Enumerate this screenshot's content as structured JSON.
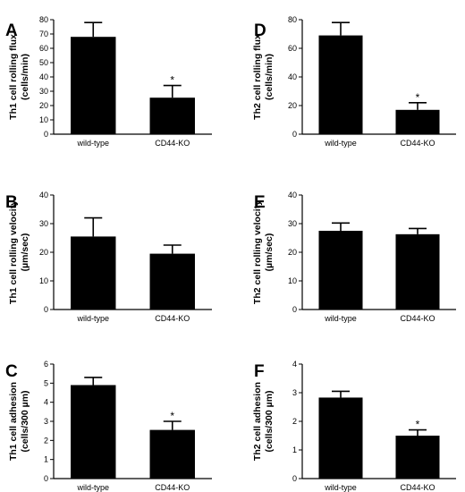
{
  "chart_data": [
    {
      "panel": "A",
      "type": "bar",
      "categories": [
        "wild-type",
        "CD44-KO"
      ],
      "values": [
        68,
        25.5
      ],
      "errors": [
        10,
        8.5
      ],
      "significance": [
        "",
        "*"
      ],
      "ylabel_lines": [
        "Th1 cell rolling flux",
        "(cells/min)"
      ],
      "ylim": [
        0,
        80
      ],
      "yticks": [
        0,
        10,
        20,
        30,
        40,
        50,
        60,
        70,
        80
      ],
      "bar_color": "#000000"
    },
    {
      "panel": "B",
      "type": "bar",
      "categories": [
        "wild-type",
        "CD44-KO"
      ],
      "values": [
        25.5,
        19.5
      ],
      "errors": [
        6.5,
        3
      ],
      "significance": [
        "",
        ""
      ],
      "ylabel_lines": [
        "Th1 cell rolling velocity",
        "(µm/sec)"
      ],
      "ylim": [
        0,
        40
      ],
      "yticks": [
        0,
        10,
        20,
        30,
        40
      ],
      "bar_color": "#000000"
    },
    {
      "panel": "C",
      "type": "bar",
      "categories": [
        "wild-type",
        "CD44-KO"
      ],
      "values": [
        4.9,
        2.55
      ],
      "errors": [
        0.4,
        0.45
      ],
      "significance": [
        "",
        "*"
      ],
      "ylabel_lines": [
        "Th1 cell adhesion",
        "(cells/300  µm)"
      ],
      "ylim": [
        0,
        6
      ],
      "yticks": [
        0,
        1,
        2,
        3,
        4,
        5,
        6
      ],
      "bar_color": "#000000"
    },
    {
      "panel": "D",
      "type": "bar",
      "categories": [
        "wild-type",
        "CD44-KO"
      ],
      "values": [
        69,
        17
      ],
      "errors": [
        9,
        5
      ],
      "significance": [
        "",
        "*"
      ],
      "ylabel_lines": [
        "Th2 cell rolling flux",
        "(cells/min)"
      ],
      "ylim": [
        0,
        80
      ],
      "yticks": [
        0,
        20,
        40,
        60,
        80
      ],
      "bar_color": "#000000"
    },
    {
      "panel": "E",
      "type": "bar",
      "categories": [
        "wild-type",
        "CD44-KO"
      ],
      "values": [
        27.5,
        26.3
      ],
      "errors": [
        2.7,
        2
      ],
      "significance": [
        "",
        ""
      ],
      "ylabel_lines": [
        "Th2 cell rolling velocity",
        "(µm/sec)"
      ],
      "ylim": [
        0,
        40
      ],
      "yticks": [
        0,
        10,
        20,
        30,
        40
      ],
      "bar_color": "#000000"
    },
    {
      "panel": "F",
      "type": "bar",
      "categories": [
        "wild-type",
        "CD44-KO"
      ],
      "values": [
        2.83,
        1.5
      ],
      "errors": [
        0.22,
        0.2
      ],
      "significance": [
        "",
        "*"
      ],
      "ylabel_lines": [
        "Th2 cell adhesion",
        "(cells/300  µm)"
      ],
      "ylim": [
        0,
        4
      ],
      "yticks": [
        0,
        1,
        2,
        3,
        4
      ],
      "bar_color": "#000000"
    }
  ]
}
